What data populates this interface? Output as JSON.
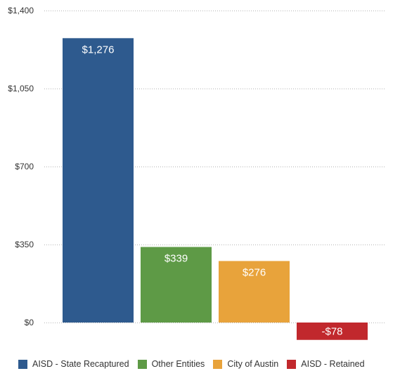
{
  "chart_data": {
    "type": "bar",
    "categories": [
      "AISD - State Recaptured",
      "Other Entities",
      "City of Austin",
      "AISD - Retained"
    ],
    "values": [
      1276,
      339,
      276,
      -78
    ],
    "data_labels": [
      "$1,276",
      "$339",
      "$276",
      "-$78"
    ],
    "colors": [
      "#2e5a8e",
      "#5e9a46",
      "#e8a33b",
      "#c1282d"
    ],
    "ylim": [
      0,
      1400
    ],
    "yticks": [
      0,
      350,
      700,
      1050,
      1400
    ],
    "ytick_labels": [
      "$0",
      "$350",
      "$700",
      "$1,050",
      "$1,400"
    ],
    "title": "",
    "xlabel": "",
    "ylabel": "",
    "grid": "horizontal dotted",
    "legend_position": "bottom"
  }
}
